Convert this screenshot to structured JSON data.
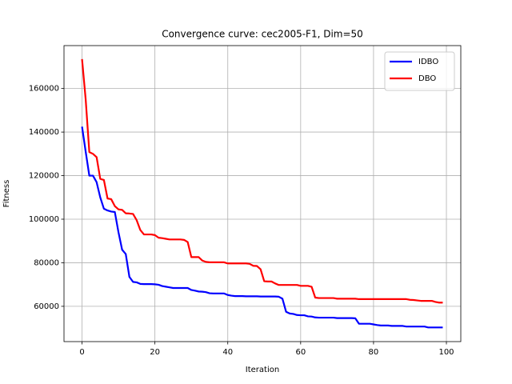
{
  "chart_data": {
    "type": "line",
    "title": "Convergence curve:  cec2005-F1, Dim=50",
    "x_label": "Iteration",
    "y_label": "Fitness",
    "x": [
      0,
      1,
      2,
      3,
      4,
      5,
      6,
      7,
      8,
      9,
      10,
      11,
      12,
      13,
      14,
      15,
      16,
      17,
      18,
      19,
      20,
      21,
      22,
      23,
      24,
      25,
      26,
      27,
      28,
      29,
      30,
      31,
      32,
      33,
      34,
      35,
      36,
      37,
      38,
      39,
      40,
      41,
      42,
      43,
      44,
      45,
      46,
      47,
      48,
      49,
      50,
      51,
      52,
      53,
      54,
      55,
      56,
      57,
      58,
      59,
      60,
      61,
      62,
      63,
      64,
      65,
      66,
      67,
      68,
      69,
      70,
      71,
      72,
      73,
      74,
      75,
      76,
      77,
      78,
      79,
      80,
      81,
      82,
      83,
      84,
      85,
      86,
      87,
      88,
      89,
      90,
      91,
      92,
      93,
      94,
      95,
      96,
      97,
      98,
      99
    ],
    "series": [
      {
        "name": "IDBO",
        "color": "#0000ff",
        "values": [
          142500,
          131000,
          120000,
          120000,
          117000,
          110000,
          104800,
          104000,
          103500,
          103300,
          94000,
          86000,
          84000,
          73500,
          71200,
          71000,
          70300,
          70200,
          70200,
          70200,
          70100,
          69900,
          69300,
          69000,
          68700,
          68400,
          68400,
          68400,
          68400,
          68400,
          67500,
          67200,
          66800,
          66700,
          66500,
          66000,
          65900,
          65900,
          65900,
          65900,
          65200,
          64900,
          64700,
          64700,
          64700,
          64600,
          64600,
          64600,
          64600,
          64500,
          64500,
          64500,
          64500,
          64500,
          64400,
          63500,
          57500,
          56700,
          56500,
          56000,
          55900,
          55900,
          55400,
          55300,
          54900,
          54800,
          54800,
          54800,
          54800,
          54800,
          54600,
          54600,
          54600,
          54600,
          54600,
          54500,
          52000,
          52000,
          52000,
          52000,
          51700,
          51400,
          51200,
          51200,
          51200,
          51000,
          51000,
          51000,
          51000,
          50700,
          50700,
          50700,
          50700,
          50700,
          50700,
          50300,
          50300,
          50300,
          50300,
          50300
        ]
      },
      {
        "name": "DBO",
        "color": "#ff0000",
        "values": [
          173500,
          155000,
          130800,
          130000,
          128500,
          118500,
          118000,
          109500,
          109200,
          106000,
          104500,
          104300,
          102700,
          102600,
          102400,
          99500,
          95000,
          93000,
          93000,
          93000,
          92700,
          91500,
          91300,
          91000,
          90700,
          90700,
          90700,
          90700,
          90500,
          89500,
          82600,
          82600,
          82600,
          81000,
          80400,
          80200,
          80200,
          80200,
          80200,
          80200,
          79700,
          79700,
          79700,
          79700,
          79700,
          79700,
          79500,
          78600,
          78500,
          77000,
          71500,
          71400,
          71400,
          70500,
          69800,
          69800,
          69800,
          69800,
          69800,
          69800,
          69400,
          69400,
          69400,
          69000,
          64000,
          63800,
          63800,
          63800,
          63800,
          63800,
          63500,
          63500,
          63500,
          63500,
          63500,
          63500,
          63300,
          63300,
          63300,
          63300,
          63300,
          63300,
          63300,
          63300,
          63300,
          63300,
          63300,
          63300,
          63300,
          63300,
          63000,
          62900,
          62700,
          62500,
          62500,
          62500,
          62500,
          62000,
          61700,
          61700
        ]
      }
    ],
    "xlim": [
      -4.95,
      103.95
    ],
    "ylim": [
      43800,
      179700
    ],
    "xticks": [
      0,
      20,
      40,
      60,
      80,
      100
    ],
    "yticks": [
      60000,
      80000,
      100000,
      120000,
      140000,
      160000
    ],
    "grid": true,
    "legend": "upper-right"
  }
}
